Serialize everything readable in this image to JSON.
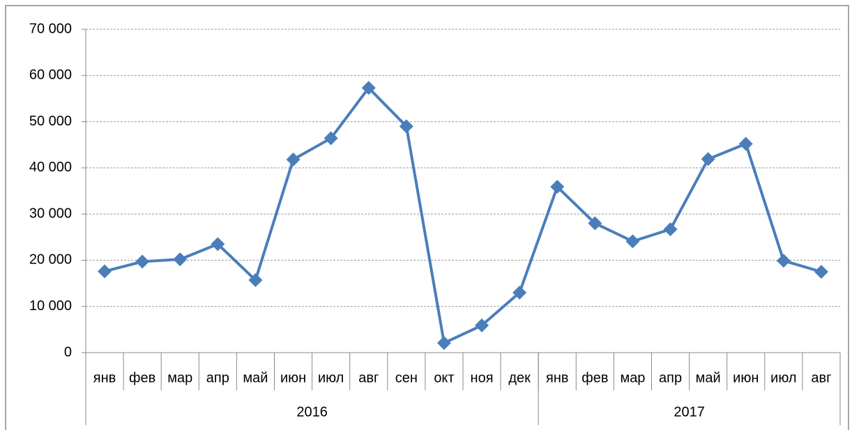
{
  "chart_data": {
    "type": "line",
    "categories": [
      "янв",
      "фев",
      "мар",
      "апр",
      "май",
      "июн",
      "июл",
      "авг",
      "сен",
      "окт",
      "ноя",
      "дек",
      "янв",
      "фев",
      "мар",
      "апр",
      "май",
      "июн",
      "июл",
      "авг"
    ],
    "groups": [
      {
        "label": "2016",
        "span": 12
      },
      {
        "label": "2017",
        "span": 8
      }
    ],
    "series": [
      {
        "color": "#4a7ebb",
        "values": [
          17600,
          19700,
          20200,
          23500,
          15700,
          41800,
          46400,
          57300,
          49000,
          2100,
          5900,
          13000,
          35900,
          28000,
          24100,
          26700,
          41900,
          45200,
          19900,
          17500
        ]
      }
    ],
    "ylim": [
      0,
      70000
    ],
    "yticks": [
      0,
      {
        "value": 10000,
        "label": "10 000"
      },
      {
        "value": 20000,
        "label": "20 000"
      },
      {
        "value": 30000,
        "label": "30 000"
      },
      {
        "value": 40000,
        "label": "40 000"
      },
      {
        "value": 50000,
        "label": "50 000"
      },
      {
        "value": 60000,
        "label": "60 000"
      },
      {
        "value": 70000,
        "label": "70 000"
      }
    ],
    "grid": true
  }
}
